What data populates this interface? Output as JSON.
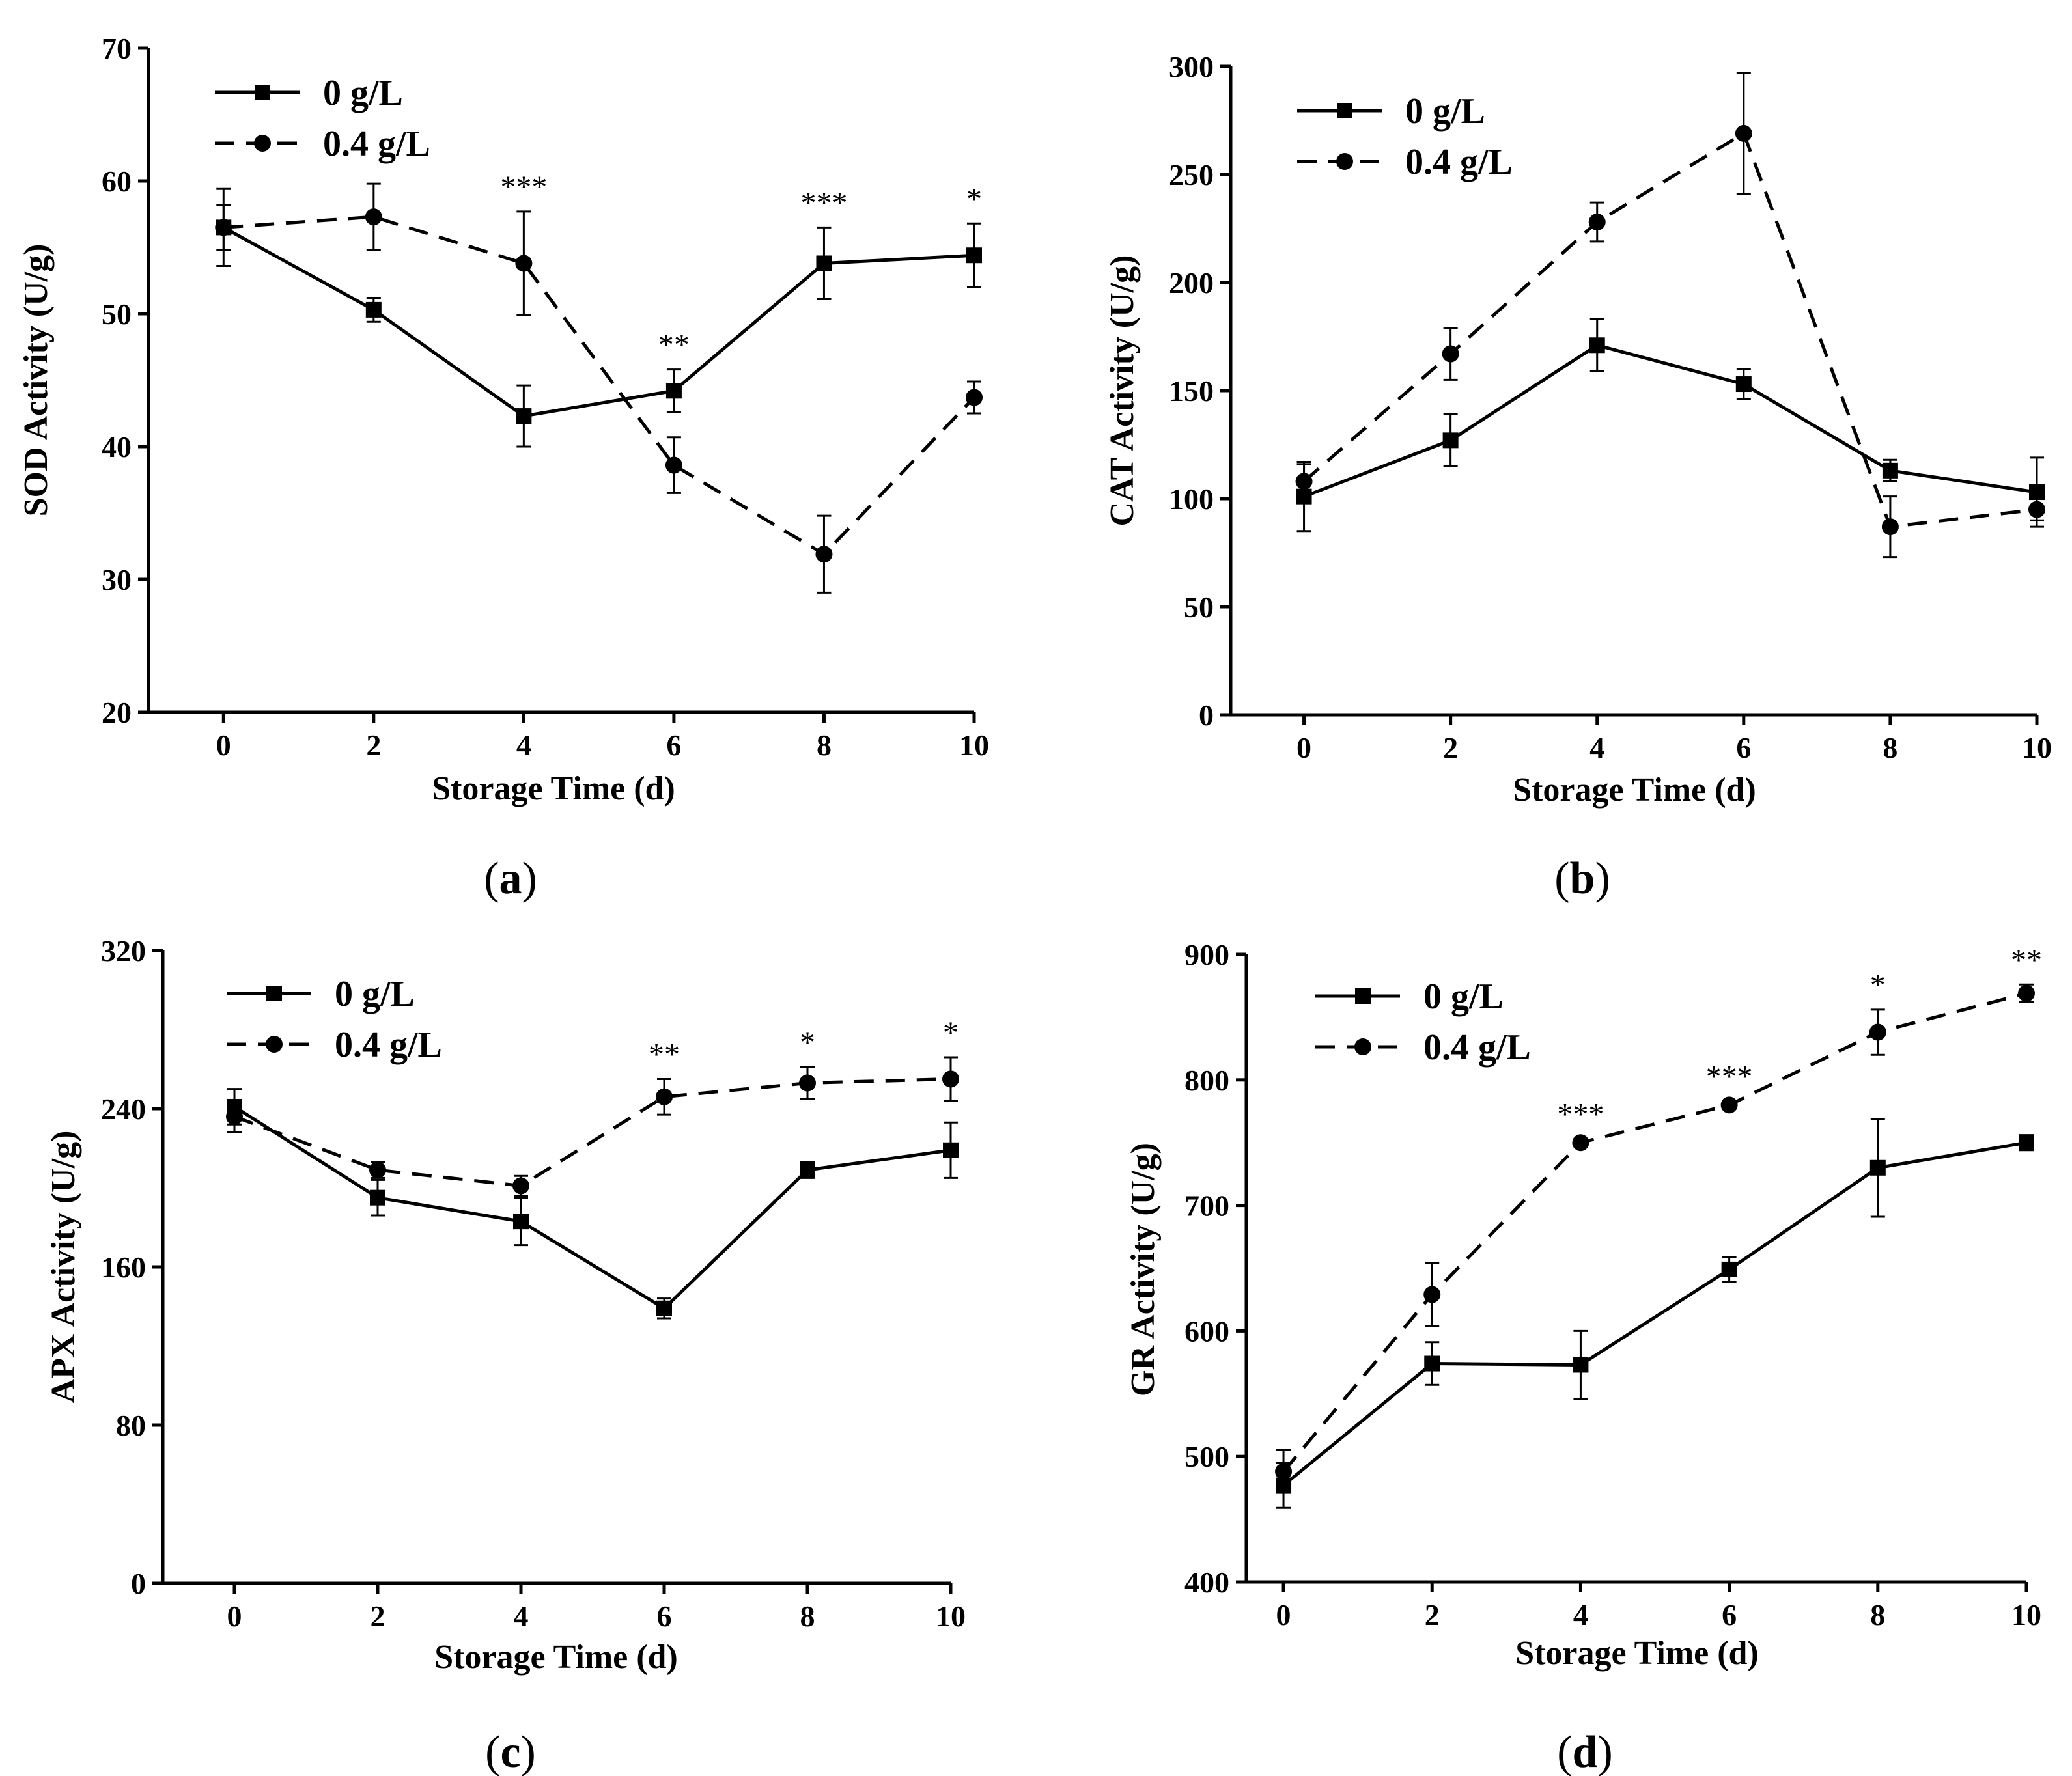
{
  "chart_data": [
    {
      "type": "line",
      "panel_label": "a",
      "xlabel": "Storage Time (d)",
      "ylabel": "SOD Activity (U/g)",
      "x": [
        0,
        2,
        4,
        6,
        8,
        10
      ],
      "xticks": [
        "0",
        "2",
        "4",
        "6",
        "8",
        "10"
      ],
      "xlim": [
        -1,
        10
      ],
      "ylim": [
        20,
        70
      ],
      "yticks": [
        "20",
        "30",
        "40",
        "50",
        "60",
        "70"
      ],
      "legend_position": "top-left",
      "series": [
        {
          "name": "0 g/L",
          "marker": "square",
          "line_style": "solid",
          "values": [
            56.5,
            50.3,
            42.3,
            44.2,
            53.8,
            54.4
          ],
          "errors": [
            2.9,
            0.9,
            2.3,
            1.6,
            2.7,
            2.4
          ]
        },
        {
          "name": "0.4 g/L",
          "marker": "circle",
          "line_style": "dashed",
          "values": [
            56.5,
            57.3,
            53.8,
            38.6,
            31.9,
            43.7
          ],
          "errors": [
            1.7,
            2.5,
            3.9,
            2.1,
            2.9,
            1.2
          ]
        }
      ],
      "significance": [
        {
          "x": 4,
          "label": "***"
        },
        {
          "x": 6,
          "label": "**"
        },
        {
          "x": 8,
          "label": "***"
        },
        {
          "x": 10,
          "label": "*"
        }
      ]
    },
    {
      "type": "line",
      "panel_label": "b",
      "xlabel": "Storage Time (d)",
      "ylabel": "CAT Activity (U/g)",
      "x": [
        0,
        2,
        4,
        6,
        8,
        10
      ],
      "xticks": [
        "0",
        "2",
        "4",
        "6",
        "8",
        "10"
      ],
      "xlim": [
        -1,
        10
      ],
      "ylim": [
        0,
        300
      ],
      "yticks": [
        "0",
        "50",
        "100",
        "150",
        "200",
        "250",
        "300"
      ],
      "legend_position": "top-left",
      "series": [
        {
          "name": "0 g/L",
          "marker": "square",
          "line_style": "solid",
          "values": [
            101,
            127,
            171,
            153,
            113,
            103
          ],
          "errors": [
            16,
            12,
            12,
            7,
            5,
            16
          ]
        },
        {
          "name": "0.4 g/L",
          "marker": "circle",
          "line_style": "dashed",
          "values": [
            108,
            167,
            228,
            269,
            87,
            95
          ],
          "errors": [
            8,
            12,
            9,
            28,
            14,
            5
          ]
        }
      ],
      "significance": []
    },
    {
      "type": "line",
      "panel_label": "c",
      "xlabel": "Storage Time (d)",
      "ylabel": "APX Activity (U/g)",
      "x": [
        0,
        2,
        4,
        6,
        8,
        10
      ],
      "xticks": [
        "0",
        "2",
        "4",
        "6",
        "8",
        "10"
      ],
      "xlim": [
        -1,
        10
      ],
      "ylim": [
        0,
        320
      ],
      "yticks": [
        "0",
        "80",
        "160",
        "240",
        "320"
      ],
      "legend_position": "top-left",
      "series": [
        {
          "name": "0 g/L",
          "marker": "square",
          "line_style": "solid",
          "values": [
            241,
            195,
            183,
            139,
            209,
            219
          ],
          "errors": [
            9,
            9,
            12,
            5,
            4,
            14
          ]
        },
        {
          "name": "0.4 g/L",
          "marker": "circle",
          "line_style": "dashed",
          "values": [
            236,
            209,
            201,
            246,
            253,
            255
          ],
          "errors": [
            8,
            4,
            5,
            9,
            8,
            11
          ]
        }
      ],
      "significance": [
        {
          "x": 6,
          "label": "**"
        },
        {
          "x": 8,
          "label": "*"
        },
        {
          "x": 10,
          "label": "*"
        }
      ]
    },
    {
      "type": "line",
      "panel_label": "d",
      "xlabel": "Storage Time (d)",
      "ylabel": "GR Activity (U/g)",
      "x": [
        0,
        2,
        4,
        6,
        8,
        10
      ],
      "xticks": [
        "0",
        "2",
        "4",
        "6",
        "8",
        "10"
      ],
      "xlim": [
        -0.5,
        10
      ],
      "ylim": [
        400,
        900
      ],
      "yticks": [
        "400",
        "500",
        "600",
        "700",
        "800",
        "900"
      ],
      "legend_position": "top-left",
      "series": [
        {
          "name": "0 g/L",
          "marker": "square",
          "line_style": "solid",
          "values": [
            477,
            574,
            573,
            649,
            730,
            750
          ],
          "errors": [
            18,
            17,
            27,
            10,
            39,
            6
          ]
        },
        {
          "name": "0.4 g/L",
          "marker": "circle",
          "line_style": "dashed",
          "values": [
            488,
            629,
            750,
            780,
            838,
            869
          ],
          "errors": [
            17,
            25,
            3,
            3,
            18,
            7
          ]
        }
      ],
      "significance": [
        {
          "x": 4,
          "label": "***"
        },
        {
          "x": 6,
          "label": "***"
        },
        {
          "x": 8,
          "label": "*"
        },
        {
          "x": 10,
          "label": "**"
        }
      ]
    }
  ]
}
